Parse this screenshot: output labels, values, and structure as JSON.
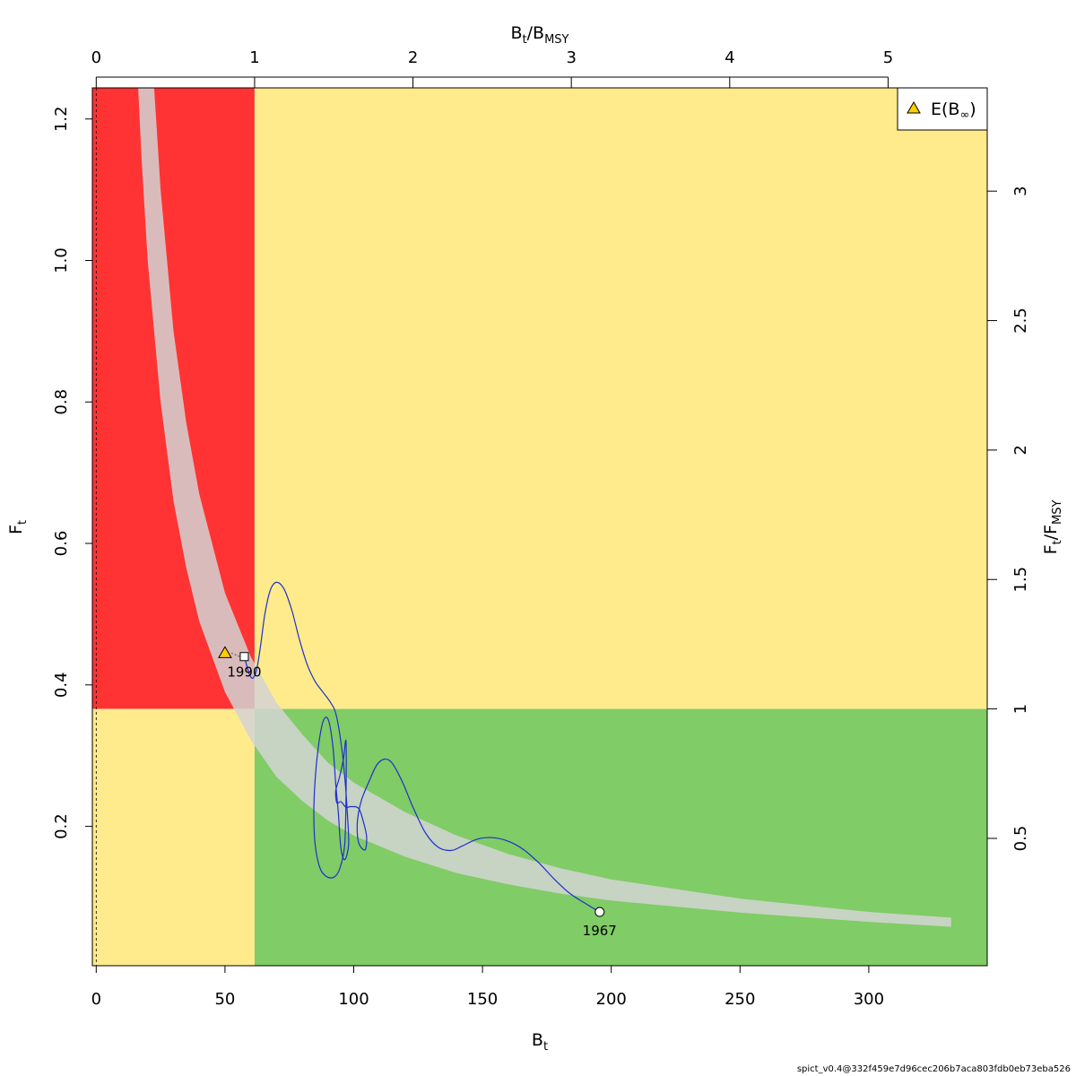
{
  "chart_data": {
    "type": "scatter",
    "title": "",
    "xlabel": "B",
    "xlabel_sub": "t",
    "ylabel": "F",
    "ylabel_sub": "t",
    "top_label": {
      "num": "B",
      "num_sub": "t",
      "den": "B",
      "den_sub": "MSY"
    },
    "right_label": {
      "num": "F",
      "num_sub": "t",
      "den": "F",
      "den_sub": "MSY"
    },
    "xlim": [
      -1.5,
      346
    ],
    "ylim": [
      0.003,
      1.244
    ],
    "x_ticks": [
      0,
      50,
      100,
      150,
      200,
      250,
      300
    ],
    "y_ticks": [
      0.2,
      0.4,
      0.6,
      0.8,
      1.0,
      1.2
    ],
    "y_tick_labels": [
      "0.2",
      "0.4",
      "0.6",
      "0.8",
      "1.0",
      "1.2"
    ],
    "bmsy": 61.5,
    "fmsy": 0.366,
    "top_ticks": [
      0,
      1,
      2,
      3,
      4,
      5
    ],
    "right_ticks": [
      0.5,
      1,
      1.5,
      2,
      2.5,
      3
    ],
    "right_tick_labels": [
      "0.5",
      "1",
      "1.5",
      "2",
      "2.5",
      "3"
    ],
    "zone_colors": {
      "red": "#ff3333",
      "yellow": "#ffeb8c",
      "green": "#80cc66"
    },
    "band_color": "#d3d3d3",
    "trajectory_color": "#1f2fcc",
    "band_upper": [
      [
        22.5,
        1.244
      ],
      [
        25,
        1.1
      ],
      [
        30,
        0.9
      ],
      [
        35,
        0.77
      ],
      [
        40,
        0.67
      ],
      [
        50,
        0.53
      ],
      [
        60,
        0.44
      ],
      [
        70,
        0.375
      ],
      [
        80,
        0.33
      ],
      [
        90,
        0.29
      ],
      [
        100,
        0.262
      ],
      [
        120,
        0.22
      ],
      [
        140,
        0.187
      ],
      [
        160,
        0.161
      ],
      [
        180,
        0.141
      ],
      [
        200,
        0.125
      ],
      [
        250,
        0.098
      ],
      [
        300,
        0.079
      ],
      [
        332,
        0.071
      ]
    ],
    "band_lower": [
      [
        332,
        0.058
      ],
      [
        300,
        0.065
      ],
      [
        250,
        0.078
      ],
      [
        200,
        0.095
      ],
      [
        180,
        0.105
      ],
      [
        160,
        0.118
      ],
      [
        140,
        0.134
      ],
      [
        120,
        0.157
      ],
      [
        100,
        0.187
      ],
      [
        90,
        0.208
      ],
      [
        80,
        0.236
      ],
      [
        70,
        0.27
      ],
      [
        60,
        0.322
      ],
      [
        50,
        0.39
      ],
      [
        40,
        0.49
      ],
      [
        35,
        0.565
      ],
      [
        30,
        0.66
      ],
      [
        25,
        0.8
      ],
      [
        20,
        1.0
      ],
      [
        17.5,
        1.15
      ],
      [
        16.3,
        1.244
      ]
    ],
    "trajectory": [
      [
        195.5,
        0.079
      ],
      [
        190,
        0.091
      ],
      [
        184,
        0.105
      ],
      [
        178,
        0.125
      ],
      [
        172,
        0.148
      ],
      [
        166,
        0.167
      ],
      [
        160,
        0.179
      ],
      [
        154,
        0.184
      ],
      [
        148,
        0.182
      ],
      [
        142,
        0.172
      ],
      [
        138,
        0.166
      ],
      [
        133,
        0.17
      ],
      [
        128,
        0.19
      ],
      [
        123,
        0.227
      ],
      [
        119,
        0.262
      ],
      [
        115,
        0.289
      ],
      [
        112,
        0.295
      ],
      [
        109,
        0.287
      ],
      [
        106,
        0.264
      ],
      [
        103,
        0.237
      ],
      [
        101.5,
        0.21
      ],
      [
        101.5,
        0.185
      ],
      [
        102.5,
        0.172
      ],
      [
        104.5,
        0.167
      ],
      [
        105,
        0.185
      ],
      [
        104,
        0.203
      ],
      [
        102,
        0.225
      ],
      [
        99,
        0.228
      ],
      [
        97,
        0.227
      ],
      [
        95,
        0.235
      ],
      [
        93.5,
        0.233
      ],
      [
        93,
        0.25
      ],
      [
        94.5,
        0.27
      ],
      [
        96,
        0.295
      ],
      [
        97,
        0.32
      ],
      [
        97,
        0.24
      ],
      [
        96.5,
        0.175
      ],
      [
        95,
        0.145
      ],
      [
        93,
        0.13
      ],
      [
        90,
        0.128
      ],
      [
        87,
        0.14
      ],
      [
        85,
        0.175
      ],
      [
        84.5,
        0.22
      ],
      [
        85,
        0.265
      ],
      [
        86,
        0.305
      ],
      [
        87.5,
        0.34
      ],
      [
        89,
        0.354
      ],
      [
        90.5,
        0.346
      ],
      [
        92,
        0.31
      ],
      [
        93,
        0.26
      ],
      [
        94,
        0.22
      ],
      [
        95,
        0.17
      ],
      [
        96.5,
        0.153
      ],
      [
        98,
        0.175
      ],
      [
        97.5,
        0.22
      ],
      [
        96.5,
        0.27
      ],
      [
        95,
        0.32
      ],
      [
        93,
        0.36
      ],
      [
        91,
        0.375
      ],
      [
        88,
        0.39
      ],
      [
        85,
        0.405
      ],
      [
        82,
        0.428
      ],
      [
        79,
        0.463
      ],
      [
        76,
        0.505
      ],
      [
        73,
        0.535
      ],
      [
        70,
        0.545
      ],
      [
        67.5,
        0.533
      ],
      [
        65.5,
        0.5
      ],
      [
        64,
        0.46
      ],
      [
        62.5,
        0.425
      ],
      [
        61,
        0.41
      ],
      [
        59.5,
        0.415
      ],
      [
        57.5,
        0.44
      ]
    ],
    "start_point": {
      "x": 195.5,
      "y": 0.079,
      "label": "1967"
    },
    "end_point": {
      "x": 57.5,
      "y": 0.44,
      "label": "1990"
    },
    "equilibrium": {
      "x": 50,
      "y": 0.445
    },
    "legend": {
      "position": "top-right",
      "label": "E(B",
      "sub": "∞",
      "close": ")",
      "marker_color": "#ffcc00"
    }
  },
  "footer": {
    "version": "spict_v0.4@332f459e7d96cec206b7aca803fdb0eb73eba526"
  }
}
